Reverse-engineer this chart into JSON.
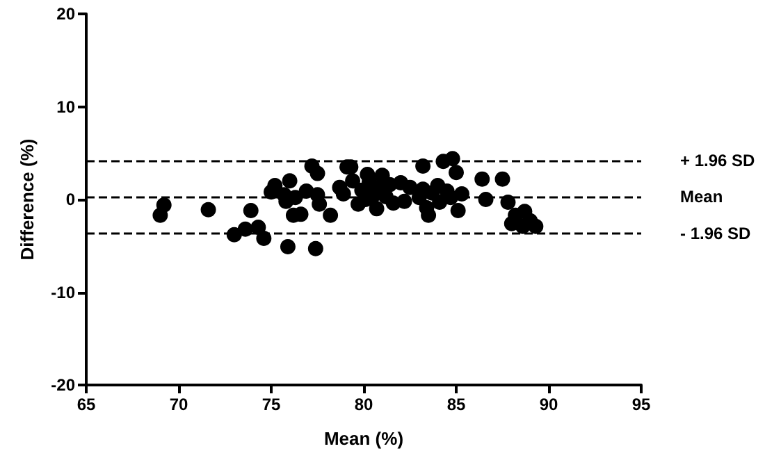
{
  "chart_data": {
    "type": "scatter",
    "xlabel": "Mean (%)",
    "ylabel": "Difference (%)",
    "xlim": [
      65,
      95
    ],
    "xticks": [
      65,
      70,
      75,
      80,
      85,
      90,
      95
    ],
    "ylim": [
      -20,
      20
    ],
    "yticks": [
      -20,
      -10,
      0,
      10,
      20
    ],
    "grid": false,
    "marker": "circle",
    "series": [
      {
        "color": "#000000",
        "x": [
          69,
          69.2,
          71.6,
          73,
          73.6,
          73.9,
          74.3,
          74.6,
          75.2,
          75,
          75.8,
          75.9,
          76,
          76.2,
          76.6,
          76.9,
          77.2,
          77.5,
          77.4,
          77.6,
          78.2,
          77.5,
          78.7,
          78.9,
          79.1,
          79.3,
          79.4,
          79.9,
          80.2,
          80.3,
          80.5,
          80.7,
          80.8,
          81,
          81.2,
          81.4,
          81.6,
          82,
          82.2,
          82.5,
          83,
          83.2,
          83.2,
          83.4,
          83.5,
          83.7,
          84,
          84.1,
          84.3,
          84.5,
          84.7,
          84.8,
          85,
          85.1,
          85.3,
          86.4,
          86.6,
          87.5,
          87.8,
          88,
          88.2,
          88.7,
          89,
          89.3,
          88.6,
          76.3,
          75.7,
          80.1,
          79.7
        ],
        "values": [
          -1.7,
          -0.6,
          -1.1,
          -3.8,
          -3.2,
          -1.2,
          -3,
          -4.2,
          1.5,
          0.8,
          -0.2,
          -5.1,
          2,
          -1.7,
          -1.6,
          0.9,
          3.6,
          2.8,
          -5.3,
          -0.5,
          -1.7,
          0.5,
          1.3,
          0.6,
          3.5,
          3.5,
          2,
          1,
          2.7,
          1.9,
          0.4,
          -1,
          1.3,
          2.6,
          0.3,
          1.6,
          -0.4,
          1.8,
          -0.2,
          1.3,
          0.2,
          1.1,
          3.6,
          -0.9,
          -1.7,
          0.7,
          1.5,
          -0.3,
          4.1,
          0.9,
          0.2,
          4.4,
          2.9,
          -1.2,
          0.6,
          2.2,
          0,
          2.2,
          -0.3,
          -2.6,
          -1.7,
          -1.3,
          -2.3,
          -2.9,
          -2.9,
          0.2,
          0.5,
          0,
          -0.5
        ]
      }
    ],
    "ref_lines": [
      {
        "axis": "y",
        "value": 4.2,
        "label": "+ 1.96 SD",
        "line_style": "dashed"
      },
      {
        "axis": "y",
        "value": 0.3,
        "label": "Mean",
        "line_style": "dashed"
      },
      {
        "axis": "y",
        "value": -3.7,
        "label": "- 1.96 SD",
        "line_style": "dashed"
      }
    ]
  }
}
